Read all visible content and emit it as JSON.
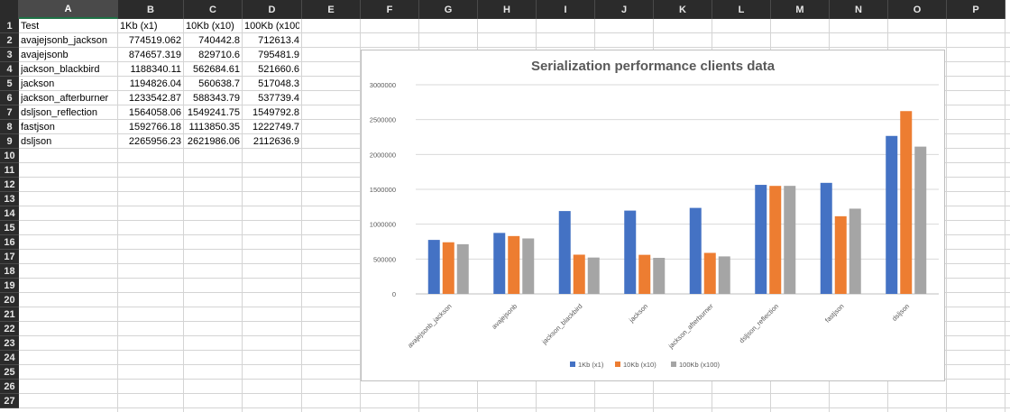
{
  "sheet": {
    "columns": [
      "A",
      "B",
      "C",
      "D",
      "E",
      "F",
      "G",
      "H",
      "I",
      "J",
      "K",
      "L",
      "M",
      "N",
      "O",
      "P"
    ],
    "rows": [
      "1",
      "2",
      "3",
      "4",
      "5",
      "6",
      "7",
      "8",
      "9",
      "10",
      "11",
      "12",
      "13",
      "14",
      "15",
      "16",
      "17",
      "18",
      "19",
      "20",
      "21",
      "22",
      "23",
      "24",
      "25",
      "26",
      "27"
    ],
    "selected_column": "A",
    "table": {
      "header": [
        "Test",
        "1Kb (x1)",
        "10Kb (x10)",
        "100Kb (x100)"
      ],
      "rows": [
        [
          "avajejsonb_jackson",
          "774519.062",
          "740442.8",
          "712613.4"
        ],
        [
          "avajejsonb",
          "874657.319",
          "829710.6",
          "795481.9"
        ],
        [
          "jackson_blackbird",
          "1188340.11",
          "562684.61",
          "521660.6"
        ],
        [
          "jackson",
          "1194826.04",
          "560638.7",
          "517048.3"
        ],
        [
          "jackson_afterburner",
          "1233542.87",
          "588343.79",
          "537739.4"
        ],
        [
          "dsljson_reflection",
          "1564058.06",
          "1549241.75",
          "1549792.8"
        ],
        [
          "fastjson",
          "1592766.18",
          "1113850.35",
          "1222749.7"
        ],
        [
          "dsljson",
          "2265956.23",
          "2621986.06",
          "2112636.9"
        ]
      ]
    }
  },
  "chart_data": {
    "type": "bar",
    "title": "Serialization performance clients data",
    "categories": [
      "avajejsonb_jackson",
      "avajejsonb",
      "jackson_blackbird",
      "jackson",
      "jackson_afterburner",
      "dsljson_reflection",
      "fastjson",
      "dsljson"
    ],
    "series": [
      {
        "name": "1Kb (x1)",
        "color": "#4472c4",
        "values": [
          774519.062,
          874657.319,
          1188340.11,
          1194826.04,
          1233542.87,
          1564058.06,
          1592766.18,
          2265956.23
        ]
      },
      {
        "name": "10Kb (x10)",
        "color": "#ed7d31",
        "values": [
          740442.8,
          829710.6,
          562684.61,
          560638.7,
          588343.79,
          1549241.75,
          1113850.35,
          2621986.06
        ]
      },
      {
        "name": "100Kb (x100)",
        "color": "#a5a5a5",
        "values": [
          712613.4,
          795481.9,
          521660.6,
          517048.3,
          537739.4,
          1549792.8,
          1222749.7,
          2112636.9
        ]
      }
    ],
    "yticks": [
      "0",
      "500000",
      "1000000",
      "1500000",
      "2000000",
      "2500000",
      "3000000"
    ],
    "ylim": [
      0,
      3000000
    ],
    "grid": true,
    "legend": "bottom"
  }
}
